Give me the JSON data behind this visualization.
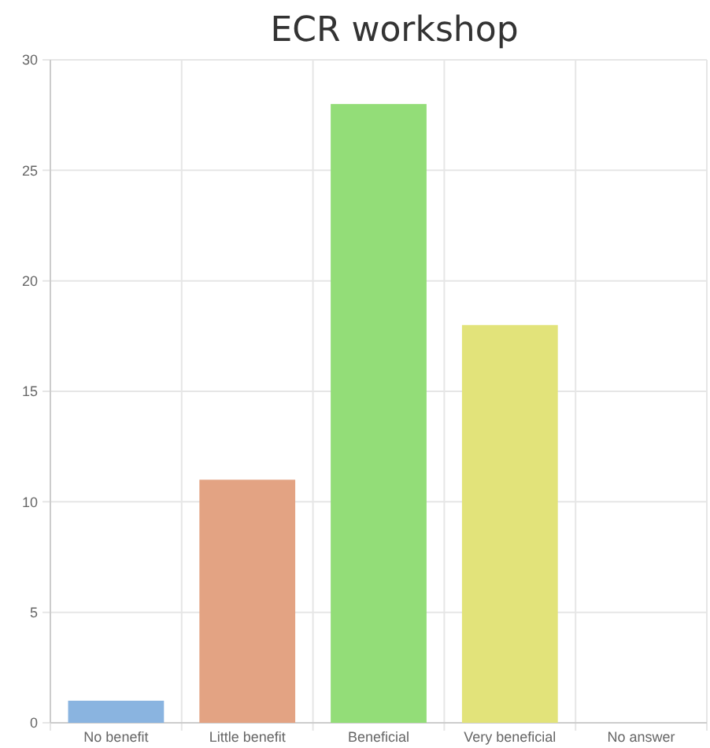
{
  "chart_data": {
    "type": "bar",
    "title": "ECR workshop",
    "categories": [
      "No benefit",
      "Little benefit",
      "Beneficial",
      "Very beneficial",
      "No answer"
    ],
    "values": [
      1,
      11,
      28,
      18,
      0
    ],
    "colors": [
      "#8ab4e0",
      "#e3a383",
      "#93dd78",
      "#e2e37a",
      "#c8c8c8"
    ],
    "ylim": [
      0,
      30
    ],
    "yticks": [
      0,
      5,
      10,
      15,
      20,
      25,
      30
    ],
    "grid": true
  }
}
